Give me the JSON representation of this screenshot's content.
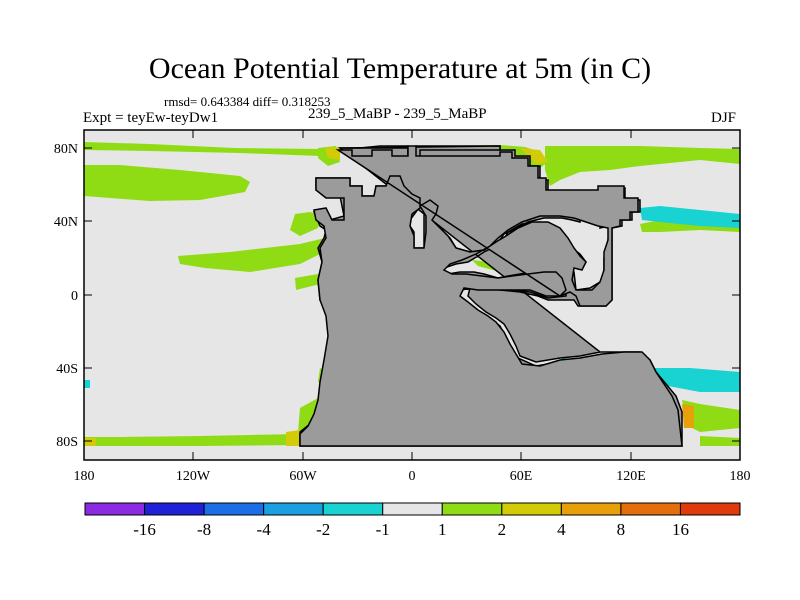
{
  "title": "Ocean Potential Temperature at 5m (in C)",
  "stats_text": "rmsd= 0.643384 diff= 0.318253",
  "expt_text": "Expt = teyEw-teyDw1",
  "subtitle": "239_5_MaBP - 239_5_MaBP",
  "season": "DJF",
  "lat_ticks": [
    "80N",
    "40N",
    "0",
    "40S",
    "80S"
  ],
  "lon_ticks": [
    "180",
    "120W",
    "60W",
    "0",
    "60E",
    "120E",
    "180"
  ],
  "colorbar": {
    "colors": [
      "#8a2be2",
      "#2020d8",
      "#1c6ee6",
      "#1aa0e0",
      "#19d2d2",
      "#e6e6e6",
      "#8fdc14",
      "#d2cc08",
      "#e8a00a",
      "#e46e0c",
      "#e03a0c"
    ],
    "labels": [
      "-16",
      "-8",
      "-4",
      "-2",
      "-1",
      "1",
      "2",
      "4",
      "8",
      "16"
    ]
  },
  "map_colors": {
    "land": "#9b9b9b",
    "ocean_neutral": "#e6e6e6",
    "green": "#8fdc14",
    "yellow": "#d2cc08",
    "orange": "#e8a00a",
    "cyan": "#19d2d2"
  }
}
